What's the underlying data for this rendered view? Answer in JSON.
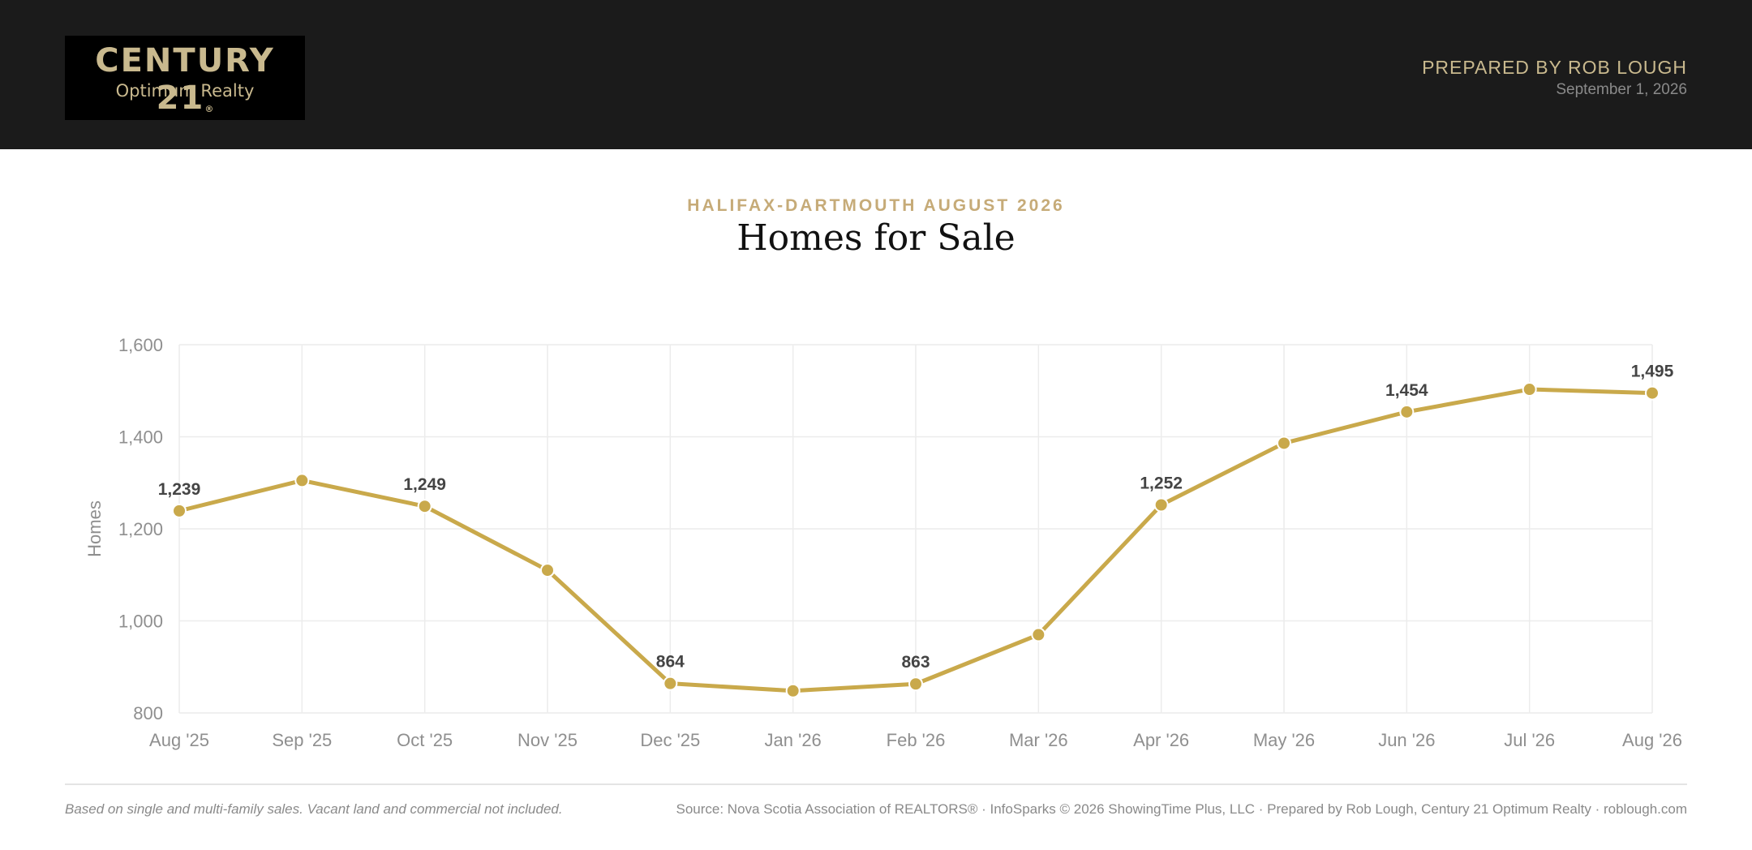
{
  "header": {
    "logo": {
      "brand": "CENTURY 21",
      "registered_mark": "®",
      "office": "Optimum Realty"
    },
    "prepared_by": "PREPARED BY ROB LOUGH",
    "date": "September 1, 2026"
  },
  "page": {
    "eyebrow": "HALIFAX-DARTMOUTH AUGUST 2026",
    "title": "Homes for Sale"
  },
  "chart_data": {
    "type": "line",
    "categories": [
      "Aug '25",
      "Sep '25",
      "Oct '25",
      "Nov '25",
      "Dec '25",
      "Jan '26",
      "Feb '26",
      "Mar '26",
      "Apr '26",
      "May '26",
      "Jun '26",
      "Jul '26",
      "Aug '26"
    ],
    "series": [
      {
        "values": [
          1239,
          1305,
          1249,
          1110,
          864,
          848,
          863,
          970,
          1252,
          1386,
          1454,
          1503,
          1495
        ]
      }
    ],
    "data_labels": [
      {
        "category": "Aug '25",
        "text": "1,239"
      },
      {
        "category": "Oct '25",
        "text": "1,249"
      },
      {
        "category": "Dec '25",
        "text": "864"
      },
      {
        "category": "Feb '26",
        "text": "863"
      },
      {
        "category": "Apr '26",
        "text": "1,252"
      },
      {
        "category": "Jun '26",
        "text": "1,454"
      },
      {
        "category": "Aug '26",
        "text": "1,495"
      }
    ],
    "ylabel": "Homes",
    "xlabel": "",
    "ylim": [
      800,
      1600
    ],
    "yticks": [
      800,
      1000,
      1200,
      1400,
      1600
    ],
    "ytick_labels": [
      "800",
      "1,000",
      "1,200",
      "1,400",
      "1,600"
    ],
    "grid": true,
    "legend": "none",
    "line_color": "#c9a94b"
  },
  "footer": {
    "note": "Based on single and multi-family sales. Vacant land and commercial not included.",
    "source": "Source: Nova Scotia Association of REALTORS® · InfoSparks © 2026 ShowingTime Plus, LLC · Prepared by Rob Lough, Century 21 Optimum Realty · roblough.com"
  }
}
